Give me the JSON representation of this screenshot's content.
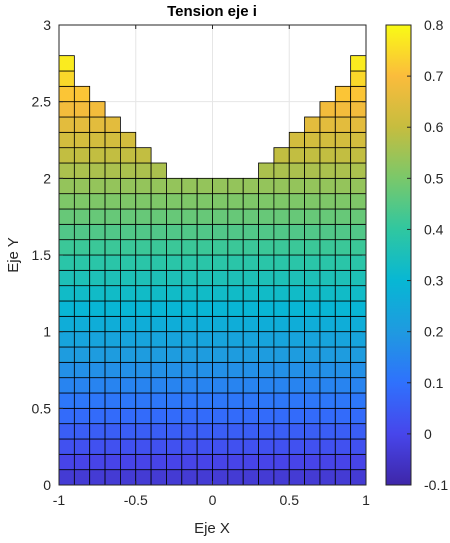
{
  "chart_data": {
    "type": "heatmap",
    "title": "Tension eje i",
    "xlabel": "Eje X",
    "ylabel": "Eje Y",
    "xlim": [
      -1,
      1
    ],
    "ylim": [
      0,
      3
    ],
    "xticks": [
      "-1",
      "-0.5",
      "0",
      "0.5",
      "1"
    ],
    "yticks": [
      "0",
      "0.5",
      "1",
      "1.5",
      "2",
      "2.5",
      "3"
    ],
    "grid": true,
    "colormap": "parula",
    "colorbar": {
      "clim": [
        -0.1,
        0.8
      ],
      "ticks": [
        "-0.1",
        "0",
        "0.1",
        "0.2",
        "0.3",
        "0.4",
        "0.5",
        "0.6",
        "0.7",
        "0.8"
      ]
    },
    "mesh": {
      "columns": 20,
      "x_range": [
        -1,
        1
      ],
      "cell_height": 0.1,
      "value_formula": "value = 0.3 * y - 0.05",
      "column_top_y": [
        2.8,
        2.6,
        2.5,
        2.4,
        2.3,
        2.2,
        2.1,
        2.0,
        2.0,
        2.0,
        2.0,
        2.0,
        2.0,
        2.1,
        2.2,
        2.3,
        2.4,
        2.5,
        2.6,
        2.8
      ]
    }
  }
}
